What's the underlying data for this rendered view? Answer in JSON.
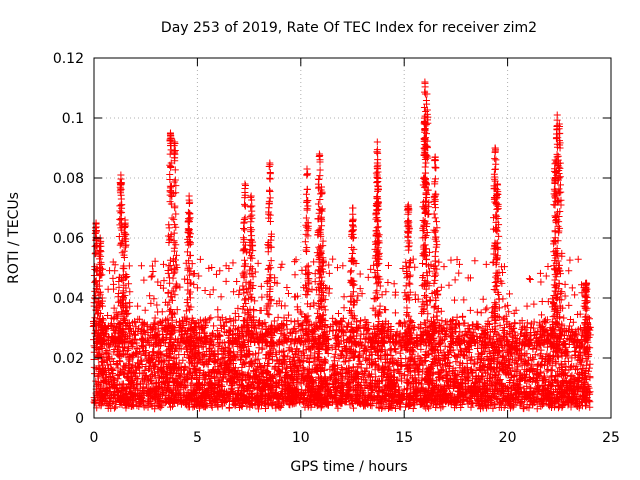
{
  "chart_data": {
    "type": "scatter",
    "title": "Day 253 of 2019, Rate Of TEC Index for receiver zim2",
    "xlabel": "GPS time / hours",
    "ylabel": "ROTI / TECUs",
    "xlim": [
      0,
      25
    ],
    "ylim": [
      0,
      0.12
    ],
    "xticks": [
      0,
      5,
      10,
      15,
      20,
      25
    ],
    "xtick_labels": [
      "0",
      "5",
      "10",
      "15",
      "20",
      "25"
    ],
    "yticks": [
      0,
      0.02,
      0.04,
      0.06,
      0.08,
      0.1,
      0.12
    ],
    "ytick_labels": [
      "0",
      "0.02",
      "0.04",
      "0.06",
      "0.08",
      "0.1",
      "0.12"
    ],
    "grid": true,
    "marker": "plus",
    "marker_color": "#ff0000",
    "data_range_hours": [
      0,
      24
    ],
    "series": [
      {
        "name": "ROTI",
        "peaks": [
          {
            "x": 0.1,
            "y": 0.065
          },
          {
            "x": 0.3,
            "y": 0.06
          },
          {
            "x": 1.3,
            "y": 0.081
          },
          {
            "x": 1.5,
            "y": 0.066
          },
          {
            "x": 3.7,
            "y": 0.095
          },
          {
            "x": 3.9,
            "y": 0.092
          },
          {
            "x": 4.6,
            "y": 0.074
          },
          {
            "x": 7.3,
            "y": 0.078
          },
          {
            "x": 7.6,
            "y": 0.074
          },
          {
            "x": 8.5,
            "y": 0.085
          },
          {
            "x": 10.3,
            "y": 0.083
          },
          {
            "x": 10.9,
            "y": 0.088
          },
          {
            "x": 11.0,
            "y": 0.077
          },
          {
            "x": 12.5,
            "y": 0.07
          },
          {
            "x": 13.7,
            "y": 0.092
          },
          {
            "x": 13.7,
            "y": 0.085
          },
          {
            "x": 15.2,
            "y": 0.071
          },
          {
            "x": 16.0,
            "y": 0.112
          },
          {
            "x": 16.1,
            "y": 0.108
          },
          {
            "x": 16.0,
            "y": 0.1
          },
          {
            "x": 16.5,
            "y": 0.087
          },
          {
            "x": 19.4,
            "y": 0.09
          },
          {
            "x": 19.5,
            "y": 0.078
          },
          {
            "x": 22.4,
            "y": 0.101
          },
          {
            "x": 22.5,
            "y": 0.098
          },
          {
            "x": 22.3,
            "y": 0.086
          },
          {
            "x": 23.8,
            "y": 0.045
          }
        ],
        "bulk_band": {
          "y_min": 0.003,
          "y_typical_max": 0.03
        }
      }
    ]
  }
}
